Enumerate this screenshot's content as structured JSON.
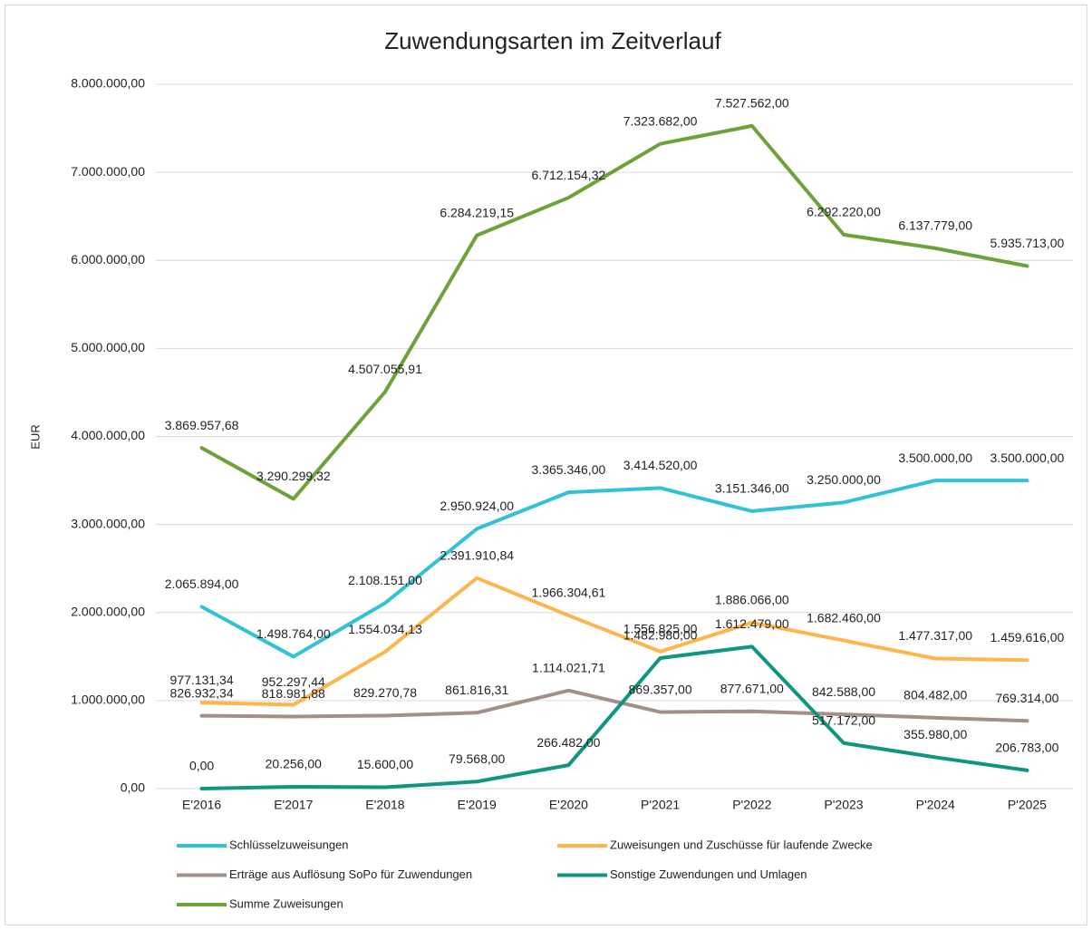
{
  "chart_data": {
    "type": "line",
    "title": "Zuwendungsarten im Zeitverlauf",
    "y_label": "EUR",
    "categories": [
      "E'2016",
      "E'2017",
      "E'2018",
      "E'2019",
      "E'2020",
      "P'2021",
      "P'2022",
      "P'2023",
      "P'2024",
      "P'2025"
    ],
    "ylim": [
      0,
      8000000
    ],
    "yticks": [
      {
        "value": 0,
        "label": "0,00"
      },
      {
        "value": 1000000,
        "label": "1.000.000,00"
      },
      {
        "value": 2000000,
        "label": "2.000.000,00"
      },
      {
        "value": 3000000,
        "label": "3.000.000,00"
      },
      {
        "value": 4000000,
        "label": "4.000.000,00"
      },
      {
        "value": 5000000,
        "label": "5.000.000,00"
      },
      {
        "value": 6000000,
        "label": "6.000.000,00"
      },
      {
        "value": 7000000,
        "label": "7.000.000,00"
      },
      {
        "value": 8000000,
        "label": "8.000.000,00"
      }
    ],
    "grid": true,
    "legend": "bottom",
    "series": [
      {
        "name": "Schlüsselzuweisungen",
        "color": "#33c1d6",
        "values": [
          2065894,
          1498764,
          2108151,
          2950924,
          3365346,
          3414520,
          3151346,
          3250000,
          3500000,
          3500000
        ],
        "value_labels": [
          "2.065.894,00",
          "1.498.764,00",
          "2.108.151,00",
          "2.950.924,00",
          "3.365.346,00",
          "3.414.520,00",
          "3.151.346,00",
          "3.250.000,00",
          "3.500.000,00",
          "3.500.000,00"
        ]
      },
      {
        "name": "Zuweisungen und Zuschüsse für laufende Zwecke",
        "color": "#fdb54c",
        "values": [
          977131.34,
          952297.44,
          1554034.13,
          2391910.84,
          1966304.61,
          1556825,
          1886066,
          1682460,
          1477317,
          1459616
        ],
        "value_labels": [
          "977.131,34",
          "952.297,44",
          "1.554.034,13",
          "2.391.910,84",
          "1.966.304,61",
          "1.556.825,00",
          "1.886.066,00",
          "1.682.460,00",
          "1.477.317,00",
          "1.459.616,00"
        ]
      },
      {
        "name": "Erträge aus Auflösung SoPo für Zuwendungen",
        "color": "#a38f87",
        "values": [
          826932.34,
          818981.88,
          829270.78,
          861816.31,
          1114021.71,
          869357,
          877671,
          842588,
          804482,
          769314
        ],
        "value_labels": [
          "826.932,34",
          "818.981,88",
          "829.270,78",
          "861.816,31",
          "1.114.021,71",
          "869.357,00",
          "877.671,00",
          "842.588,00",
          "804.482,00",
          "769.314,00"
        ]
      },
      {
        "name": "Sonstige Zuwendungen und Umlagen",
        "color": "#0f9580",
        "values": [
          0,
          20256,
          15600,
          79568,
          266482,
          1482980,
          1612479,
          517172,
          355980,
          206783
        ],
        "value_labels": [
          "0,00",
          "20.256,00",
          "15.600,00",
          "79.568,00",
          "266.482,00",
          "1.482.980,00",
          "1.612.479,00",
          "517.172,00",
          "355.980,00",
          "206.783,00"
        ]
      },
      {
        "name": "Summe Zuweisungen",
        "color": "#6ca23a",
        "values": [
          3869957.68,
          3290299.32,
          4507055.91,
          6284219.15,
          6712154.32,
          7323682,
          7527562,
          6292220,
          6137779,
          5935713
        ],
        "value_labels": [
          "3.869.957,68",
          "3.290.299,32",
          "4.507.055,91",
          "6.284.219,15",
          "6.712.154,32",
          "7.323.682,00",
          "7.527.562,00",
          "6.292.220,00",
          "6.137.779,00",
          "5.935.713,00"
        ]
      }
    ]
  }
}
